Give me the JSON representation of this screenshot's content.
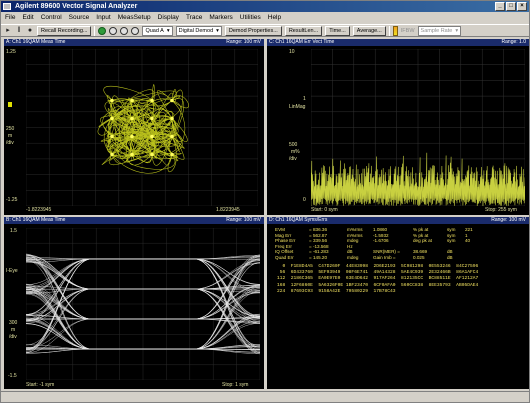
{
  "window": {
    "title": "Agilent 89600 Vector Signal Analyzer",
    "controls": [
      "_",
      "□",
      "×"
    ]
  },
  "menu": [
    "File",
    "Edit",
    "Control",
    "Source",
    "Input",
    "MeasSetup",
    "Display",
    "Trace",
    "Markers",
    "Utilities",
    "Help"
  ],
  "toolbar": {
    "recall_label": "Recall Recording...",
    "preset_select": "Quad A",
    "demod_select": "Digital Demod",
    "demod_props": "Demod Properties...",
    "result_len": "ResultLen...",
    "time_label": "Time...",
    "average_label": "Average...",
    "rate_label": "IFBW",
    "rate_select": "Sample Rate"
  },
  "panels": {
    "a": {
      "title": "A: Ch1 16QAM Meas Time",
      "range": "Range: 100 mV",
      "ytop": "1.25",
      "ymid": "250",
      "ymid_unit": "m",
      "ymid_div": "/div",
      "ybot": "-1.25",
      "xleft": "-1.8223945",
      "xright": "1.8223945"
    },
    "c": {
      "title": "C: Ch1 16QAM Err Vect Time",
      "range": "Range: 1.0",
      "ytop": "10",
      "ymid": "1",
      "ymid_label": "LinMag",
      "ymid2": "500",
      "ymid2_unit": "m%",
      "ymid2_div": "/div",
      "ybot": "0",
      "xleft": "Start: 0   sym",
      "xright": "Stop: 255   sym"
    },
    "b": {
      "title": "B: Ch1 16QAM Meas Time",
      "range": "Range: 100 mV",
      "ytop": "1.5",
      "ymid": "I-Eye",
      "ymid2": "300",
      "ymid2_unit": "m",
      "ymid2_div": "/div",
      "ybot": "-1.5",
      "xleft": "Start: -1   sym",
      "xright": "Stop: 1   sym"
    },
    "d": {
      "title": "D: Ch1 16QAM Syms/Errs",
      "range": "Range: 100 mV",
      "errors": [
        {
          "name": "EVM",
          "val": "= 836.36",
          "unit": "m%rms",
          "v2": "1.0860",
          "u2": "% pk at",
          "v3": "sym",
          "v4": "221"
        },
        {
          "name": "Mag Err",
          "val": "= 562.87",
          "unit": "m%rms",
          "v2": "-1.5932",
          "u2": "% pk at",
          "v3": "sym",
          "v4": "1"
        },
        {
          "name": "Phase Err",
          "val": "= 339.56",
          "unit": "mdeg",
          "v2": "-1.6706",
          "u2": "deg pk at",
          "v3": "sym",
          "v4": "40"
        },
        {
          "name": "Freq Err",
          "val": "= -13.568",
          "unit": "Hz",
          "v2": "",
          "u2": "",
          "v3": "",
          "v4": ""
        },
        {
          "name": "IQ Offset",
          "val": "= -61.283",
          "unit": "dB",
          "v2": "SNR(MER) =",
          "u2": "38.669",
          "v3": "dB",
          "v4": ""
        },
        {
          "name": "Quad Err",
          "val": "= 145.20",
          "unit": "mdeg",
          "v2": "Gain Imb =",
          "u2": "0.025",
          "v3": "dB",
          "v4": ""
        }
      ],
      "symbols": [
        "  0  F1E8D4A5  C47D260F  44E83998  2D6E2193  5C981298  0E553246  84C27596",
        " 56  6D433760  5EF93949  08F6E741  49A14328  5AE4C939  2E32466B  86A1AFC4",
        "112  2186C365  EA0E97E0  63E4D642  917AF264  812135CC  BC88511E  AF1212A7",
        "168  12F6860E  5A6326F0E 1BF23470  6CF0AFA0  560CC838  8EE35793  AB05DAE4",
        "224  87693C93  9158A42E  79580229  17B78C43"
      ]
    }
  }
}
